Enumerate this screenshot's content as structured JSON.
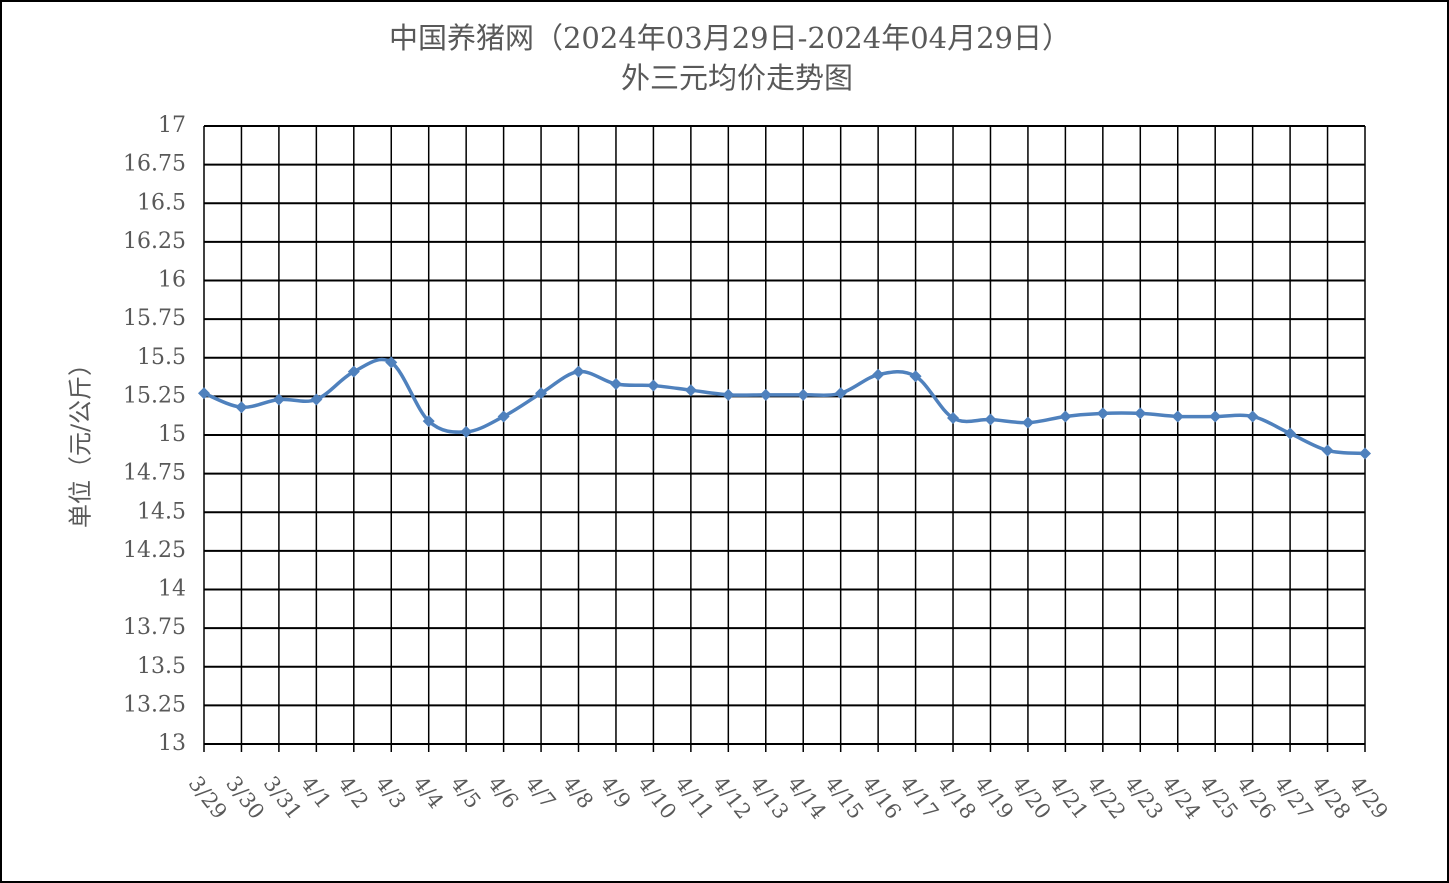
{
  "chart_data": {
    "type": "line",
    "title": "中国养猪网（2024年03月29日-2024年04月29日）",
    "subtitle": "外三元均价走势图",
    "y_label": "单位（元/公斤）",
    "categories": [
      "3/29",
      "3/30",
      "3/31",
      "4/1",
      "4/2",
      "4/3",
      "4/4",
      "4/5",
      "4/6",
      "4/7",
      "4/8",
      "4/9",
      "4/10",
      "4/11",
      "4/12",
      "4/13",
      "4/14",
      "4/15",
      "4/16",
      "4/17",
      "4/18",
      "4/19",
      "4/20",
      "4/21",
      "4/22",
      "4/23",
      "4/24",
      "4/25",
      "4/26",
      "4/27",
      "4/28",
      "4/29"
    ],
    "values": [
      15.27,
      15.18,
      15.23,
      15.23,
      15.41,
      15.47,
      15.09,
      15.02,
      15.12,
      15.27,
      15.41,
      15.33,
      15.32,
      15.29,
      15.26,
      15.26,
      15.26,
      15.27,
      15.39,
      15.38,
      15.11,
      15.1,
      15.08,
      15.12,
      15.14,
      15.14,
      15.12,
      15.12,
      15.12,
      15.01,
      14.9,
      14.88
    ],
    "color": "#4f81bd",
    "ylim": [
      13,
      17
    ],
    "yticks": [
      13,
      13.25,
      13.5,
      13.75,
      14,
      14.25,
      14.5,
      14.75,
      15,
      15.25,
      15.5,
      15.75,
      16,
      16.25,
      16.5,
      16.75,
      17
    ],
    "grid": true
  }
}
